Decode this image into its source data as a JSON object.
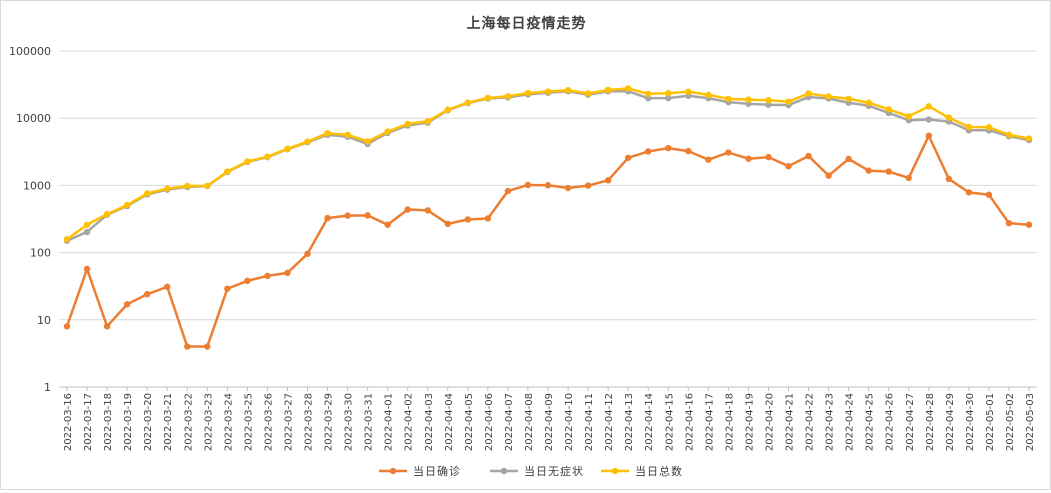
{
  "chart_data": {
    "type": "line",
    "title": "上海每日疫情走势",
    "xlabel": "",
    "ylabel": "",
    "y_scale": "log",
    "ylim": [
      1,
      100000
    ],
    "y_ticks": [
      "1",
      "10",
      "100",
      "1000",
      "10000",
      "100000"
    ],
    "grid": true,
    "legend_position": "bottom",
    "x": [
      "2022-03-16",
      "2022-03-17",
      "2022-03-18",
      "2022-03-19",
      "2022-03-20",
      "2022-03-21",
      "2022-03-22",
      "2022-03-23",
      "2022-03-24",
      "2022-03-25",
      "2022-03-26",
      "2022-03-27",
      "2022-03-28",
      "2022-03-29",
      "2022-03-30",
      "2022-03-31",
      "2022-04-01",
      "2022-04-02",
      "2022-04-03",
      "2022-04-04",
      "2022-04-05",
      "2022-04-06",
      "2022-04-07",
      "2022-04-08",
      "2022-04-09",
      "2022-04-10",
      "2022-04-11",
      "2022-04-12",
      "2022-04-13",
      "2022-04-14",
      "2022-04-15",
      "2022-04-16",
      "2022-04-17",
      "2022-04-18",
      "2022-04-19",
      "2022-04-20",
      "2022-04-21",
      "2022-04-22",
      "2022-04-23",
      "2022-04-24",
      "2022-04-25",
      "2022-04-26",
      "2022-04-27",
      "2022-04-28",
      "2022-04-29",
      "2022-04-30",
      "2022-05-01",
      "2022-05-02",
      "2022-05-03"
    ],
    "series": [
      {
        "name": "当日确诊",
        "color": "#ED7D31",
        "values": [
          8,
          57,
          8,
          17,
          24,
          31,
          4,
          4,
          29,
          38,
          45,
          50,
          96,
          326,
          355,
          358,
          260,
          438,
          425,
          268,
          311,
          322,
          824,
          1015,
          1006,
          914,
          994,
          1189,
          2573,
          3200,
          3590,
          3238,
          2417,
          3084,
          2494,
          2634,
          1931,
          2736,
          1401,
          2472,
          1661,
          1606,
          1292,
          5487,
          1249,
          788,
          727,
          274,
          260
        ]
      },
      {
        "name": "当日无症状",
        "color": "#A5A5A5",
        "values": [
          150,
          203,
          366,
          492,
          734,
          865,
          949,
          979,
          1580,
          2231,
          2631,
          3450,
          4381,
          5656,
          5298,
          4144,
          6051,
          7788,
          8581,
          13086,
          16766,
          19660,
          20398,
          22609,
          23937,
          25173,
          22348,
          25141,
          25146,
          19872,
          19923,
          21582,
          19831,
          17332,
          16407,
          15861,
          15698,
          20634,
          19657,
          16983,
          15319,
          11956,
          9330,
          9545,
          8932,
          6606,
          6606,
          5395,
          4722
        ]
      },
      {
        "name": "当日总数",
        "color": "#FFC000",
        "values": [
          158,
          260,
          374,
          509,
          758,
          896,
          981,
          983,
          1609,
          2269,
          2676,
          3500,
          4477,
          5982,
          5653,
          4502,
          6311,
          8226,
          9006,
          13354,
          17077,
          19982,
          21222,
          23624,
          24943,
          26087,
          23342,
          26330,
          27719,
          23072,
          23513,
          24820,
          22248,
          19416,
          18901,
          18495,
          17629,
          23370,
          21058,
          19455,
          16980,
          13562,
          10622,
          15032,
          10181,
          7394,
          7333,
          5669,
          4982
        ]
      }
    ]
  }
}
